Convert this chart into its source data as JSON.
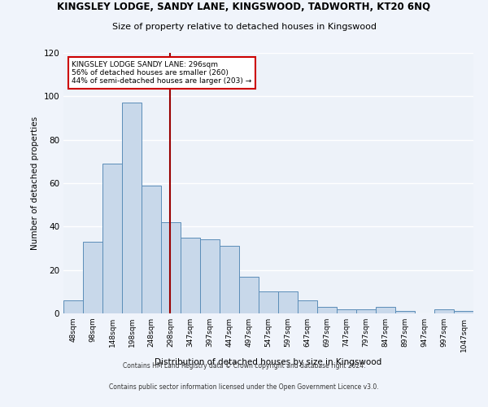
{
  "title": "KINGSLEY LODGE, SANDY LANE, KINGSWOOD, TADWORTH, KT20 6NQ",
  "subtitle": "Size of property relative to detached houses in Kingswood",
  "xlabel": "Distribution of detached houses by size in Kingswood",
  "ylabel": "Number of detached properties",
  "bar_color": "#c8d8ea",
  "bar_edge_color": "#5b8db8",
  "background_color": "#edf2f9",
  "grid_color": "#ffffff",
  "categories": [
    "48sqm",
    "98sqm",
    "148sqm",
    "198sqm",
    "248sqm",
    "298sqm",
    "347sqm",
    "397sqm",
    "447sqm",
    "497sqm",
    "547sqm",
    "597sqm",
    "647sqm",
    "697sqm",
    "747sqm",
    "797sqm",
    "847sqm",
    "897sqm",
    "947sqm",
    "997sqm",
    "1047sqm"
  ],
  "values": [
    6,
    33,
    69,
    97,
    59,
    42,
    35,
    34,
    31,
    17,
    10,
    10,
    6,
    3,
    2,
    2,
    3,
    1,
    0,
    2,
    1
  ],
  "ylim": [
    0,
    120
  ],
  "yticks": [
    0,
    20,
    40,
    60,
    80,
    100,
    120
  ],
  "annotation_line1": "KINGSLEY LODGE SANDY LANE: 296sqm",
  "annotation_line2": "56% of detached houses are smaller (260)",
  "annotation_line3": "44% of semi-detached houses are larger (203) →",
  "annotation_box_color": "#ffffff",
  "annotation_border_color": "#cc0000",
  "footer_line1": "Contains HM Land Registry data © Crown copyright and database right 2024.",
  "footer_line2": "Contains public sector information licensed under the Open Government Licence v3.0.",
  "fig_bg_color": "#f0f4fb"
}
